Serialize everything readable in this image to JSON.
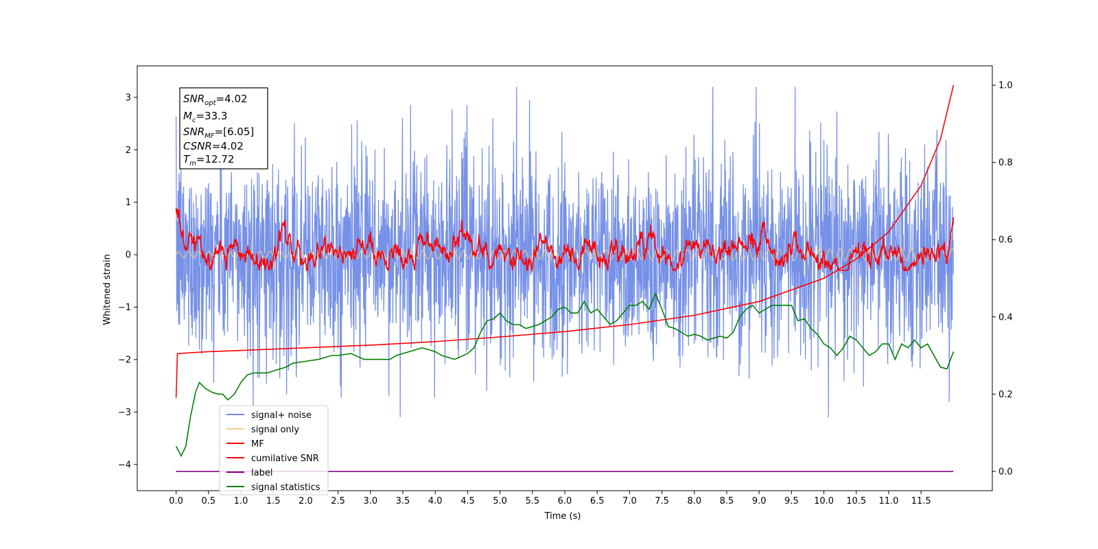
{
  "chart_data": {
    "type": "line",
    "xlabel": "Time (s)",
    "ylabel": "Whitened strain",
    "xlim": [
      -0.6,
      12.6
    ],
    "ylim": [
      -4.5,
      3.6
    ],
    "y2lim": [
      -0.05,
      1.05
    ],
    "x_ticks": [
      "0.0",
      "0.5",
      "1.0",
      "1.5",
      "2.0",
      "2.5",
      "3.0",
      "3.5",
      "4.0",
      "4.5",
      "5.0",
      "5.5",
      "6.0",
      "6.5",
      "7.0",
      "7.5",
      "8.0",
      "8.5",
      "9.0",
      "9.5",
      "10.0",
      "10.5",
      "11.0",
      "11.5"
    ],
    "y_ticks": [
      "-4",
      "-3",
      "-2",
      "-1",
      "0",
      "1",
      "2",
      "3"
    ],
    "y2_ticks": [
      "0.0",
      "0.2",
      "0.4",
      "0.6",
      "0.8",
      "1.0"
    ],
    "info_box": {
      "snr_opt": {
        "sym": "SNR",
        "sub": "opt",
        "val": "=4.02"
      },
      "mc": {
        "sym": "M",
        "sub": "c",
        "val": "=33.3"
      },
      "snr_mf": {
        "sym": "SNR",
        "sub": "MF",
        "val": "=[6.05]"
      },
      "csnr": {
        "sym": "CSNR",
        "val": "=4.02"
      },
      "tm": {
        "sym": "T",
        "sub": "m",
        "val": "=12.72"
      }
    },
    "legend": [
      {
        "label": "signal+ noise",
        "color": "#6f8be6"
      },
      {
        "label": "signal only",
        "color": "#f5d08a"
      },
      {
        "label": "MF",
        "color": "#ff0000"
      },
      {
        "label": "cumilative SNR",
        "color": "#ff0000"
      },
      {
        "label": "label",
        "color": "#800080"
      },
      {
        "label": "signal statistics",
        "color": "#008000"
      }
    ],
    "series": [
      {
        "name": "signal+ noise",
        "axis": "left",
        "color": "#6f8be6",
        "description": "noise envelope approx. -2.2 to 2.2, spikes to 3.2 / -3.1",
        "x_range": [
          0.0,
          12.0
        ]
      },
      {
        "name": "signal only",
        "axis": "left",
        "color": "#f5d08a",
        "x_range": [
          0.0,
          12.0
        ]
      },
      {
        "name": "MF",
        "axis": "left",
        "color": "#ff0000",
        "x_range": [
          0.0,
          12.0
        ],
        "range": [
          -0.3,
          1.0
        ]
      },
      {
        "name": "cumilative SNR",
        "axis": "right",
        "color": "#ff0000",
        "x": [
          0.0,
          0.02,
          0.5,
          1.0,
          2.0,
          3.0,
          4.0,
          5.0,
          6.0,
          7.0,
          8.0,
          9.0,
          10.0,
          10.5,
          11.0,
          11.5,
          11.8,
          12.0
        ],
        "values": [
          0.19,
          0.305,
          0.31,
          0.313,
          0.32,
          0.327,
          0.336,
          0.348,
          0.362,
          0.38,
          0.404,
          0.44,
          0.5,
          0.55,
          0.62,
          0.74,
          0.86,
          1.0
        ]
      },
      {
        "name": "label",
        "axis": "right",
        "color": "#800080",
        "x": [
          0.0,
          12.0
        ],
        "values": [
          0.0,
          0.0
        ]
      },
      {
        "name": "signal statistics",
        "axis": "right",
        "color": "#008000",
        "x": [
          0.0,
          0.08,
          0.15,
          0.22,
          0.3,
          0.36,
          0.45,
          0.55,
          0.65,
          0.72,
          0.8,
          0.9,
          1.0,
          1.1,
          1.2,
          1.3,
          1.4,
          1.5,
          1.6,
          1.7,
          1.8,
          2.0,
          2.2,
          2.4,
          2.5,
          2.7,
          2.9,
          3.1,
          3.3,
          3.4,
          3.6,
          3.8,
          4.0,
          4.1,
          4.3,
          4.5,
          4.6,
          4.7,
          4.8,
          4.9,
          5.0,
          5.1,
          5.2,
          5.3,
          5.4,
          5.5,
          5.6,
          5.8,
          5.9,
          6.0,
          6.1,
          6.2,
          6.3,
          6.4,
          6.5,
          6.6,
          6.7,
          6.8,
          6.9,
          7.0,
          7.1,
          7.2,
          7.3,
          7.4,
          7.5,
          7.6,
          7.7,
          7.8,
          7.9,
          8.0,
          8.1,
          8.2,
          8.3,
          8.4,
          8.5,
          8.6,
          8.7,
          8.8,
          8.9,
          9.0,
          9.1,
          9.2,
          9.3,
          9.5,
          9.6,
          9.7,
          9.8,
          9.9,
          10.0,
          10.1,
          10.2,
          10.3,
          10.4,
          10.5,
          10.6,
          10.7,
          10.8,
          10.9,
          11.0,
          11.1,
          11.2,
          11.3,
          11.4,
          11.5,
          11.6,
          11.7,
          11.8,
          11.9,
          12.0
        ],
        "values": [
          0.065,
          0.04,
          0.065,
          0.14,
          0.205,
          0.23,
          0.215,
          0.205,
          0.2,
          0.2,
          0.185,
          0.2,
          0.23,
          0.25,
          0.255,
          0.255,
          0.255,
          0.26,
          0.265,
          0.27,
          0.28,
          0.285,
          0.29,
          0.3,
          0.3,
          0.305,
          0.29,
          0.29,
          0.29,
          0.3,
          0.31,
          0.32,
          0.31,
          0.3,
          0.29,
          0.305,
          0.32,
          0.36,
          0.39,
          0.395,
          0.41,
          0.39,
          0.38,
          0.38,
          0.37,
          0.375,
          0.38,
          0.4,
          0.42,
          0.425,
          0.41,
          0.41,
          0.44,
          0.41,
          0.42,
          0.4,
          0.38,
          0.39,
          0.41,
          0.43,
          0.43,
          0.44,
          0.42,
          0.46,
          0.42,
          0.375,
          0.37,
          0.36,
          0.35,
          0.355,
          0.35,
          0.34,
          0.345,
          0.35,
          0.345,
          0.36,
          0.4,
          0.42,
          0.43,
          0.41,
          0.42,
          0.43,
          0.43,
          0.43,
          0.39,
          0.395,
          0.37,
          0.355,
          0.33,
          0.32,
          0.3,
          0.32,
          0.35,
          0.34,
          0.32,
          0.3,
          0.31,
          0.33,
          0.33,
          0.29,
          0.33,
          0.32,
          0.34,
          0.32,
          0.33,
          0.3,
          0.27,
          0.265,
          0.31
        ]
      }
    ]
  }
}
